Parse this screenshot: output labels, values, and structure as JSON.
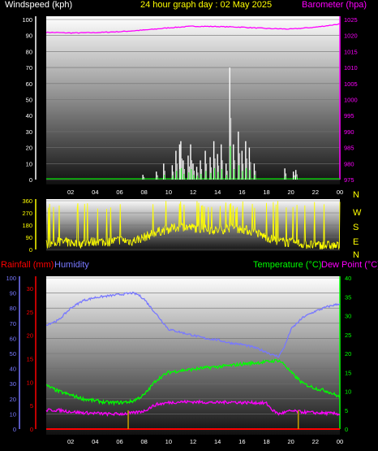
{
  "header": {
    "title": "24 hour graph day : 02 May 2025",
    "left_label": "Windspeed (kph)",
    "right_label": "Barometer (hpa)"
  },
  "colors": {
    "wind_speed": "#d0d0d0",
    "wind_gust": "#ffffff",
    "wind_avg": "#00e000",
    "barometer": "#ff00ff",
    "direction": "#ffff00",
    "temperature": "#00ff00",
    "dew_point": "#ff00ff",
    "humidity": "#7878ff",
    "rainfall": "#ff0000",
    "rain_marks": "#c8a000",
    "title": "#ffff00"
  },
  "chart_data": [
    {
      "type": "line",
      "name": "wind-barometer",
      "x_ticks": [
        "02",
        "04",
        "06",
        "08",
        "10",
        "12",
        "14",
        "16",
        "18",
        "20",
        "22",
        "00"
      ],
      "left_ticks": [
        "0",
        "10",
        "20",
        "30",
        "40",
        "50",
        "60",
        "70",
        "80",
        "90",
        "100"
      ],
      "right_ticks": [
        "975",
        "980",
        "985",
        "990",
        "995",
        "1000",
        "1005",
        "1010",
        "1015",
        "1020",
        "1025"
      ],
      "ylim_left": [
        0,
        100
      ],
      "ylim_right": [
        975,
        1025
      ],
      "series": [
        {
          "key": "barometer",
          "axis": "right",
          "x": [
            0,
            2,
            4,
            6,
            8,
            10,
            12,
            14,
            16,
            18,
            20,
            22,
            24
          ],
          "values": [
            1021.0,
            1020.8,
            1020.9,
            1021.2,
            1021.7,
            1022.4,
            1022.9,
            1022.8,
            1022.6,
            1022.2,
            1022.0,
            1022.6,
            1023.6
          ]
        },
        {
          "key": "wind_spikes",
          "x": [
            7.9,
            9.0,
            9.6,
            10.3,
            10.6,
            10.9,
            11.0,
            11.2,
            11.6,
            11.8,
            12.0,
            12.3,
            12.6,
            13.0,
            13.4,
            13.7,
            14.0,
            14.3,
            14.7,
            15.0,
            15.3,
            15.7,
            16.0,
            16.3,
            16.6,
            17.0,
            19.5,
            20.2,
            20.4
          ],
          "values": [
            3,
            5,
            10,
            9,
            18,
            22,
            24,
            12,
            15,
            22,
            10,
            8,
            12,
            18,
            14,
            24,
            16,
            22,
            10,
            70,
            22,
            30,
            18,
            24,
            20,
            10,
            7,
            5,
            6
          ]
        }
      ]
    },
    {
      "type": "scatter",
      "name": "wind-direction",
      "x_ticks": [
        "02",
        "04",
        "06",
        "08",
        "10",
        "12",
        "14",
        "16",
        "18",
        "20",
        "22",
        "00"
      ],
      "left_ticks": [
        "0",
        "90",
        "180",
        "270",
        "360"
      ],
      "right_labels": [
        "N",
        "W",
        "S",
        "E",
        "N"
      ],
      "ylim": [
        0,
        360
      ],
      "band_center": [
        0,
        1,
        2,
        3,
        4,
        5,
        6,
        7,
        8,
        9,
        10,
        11,
        12,
        13,
        14,
        15,
        16,
        17,
        18,
        19,
        20,
        21,
        22,
        23,
        24
      ],
      "band_values": [
        40,
        55,
        50,
        45,
        60,
        55,
        70,
        60,
        90,
        130,
        150,
        170,
        160,
        150,
        140,
        160,
        150,
        130,
        90,
        60,
        50,
        40,
        30,
        30,
        25
      ]
    },
    {
      "type": "line",
      "name": "temperature-humidity-rain",
      "left_label": "Rainfall (mm)",
      "left2_label": "Humidity",
      "right_label": "Temperature (°C)",
      "right2_label": "Dew Point (°C)",
      "x_ticks": [
        "02",
        "04",
        "06",
        "08",
        "10",
        "12",
        "14",
        "16",
        "18",
        "20",
        "22",
        "00"
      ],
      "humidity_ticks": [
        "0",
        "10",
        "20",
        "30",
        "40",
        "50",
        "60",
        "70",
        "80",
        "90",
        "100"
      ],
      "rain_ticks": [
        "0",
        "5",
        "10",
        "15",
        "20",
        "25",
        "30"
      ],
      "temp_ticks": [
        "0",
        "5",
        "10",
        "15",
        "20",
        "25",
        "30",
        "35",
        "40"
      ],
      "ylim_humidity": [
        0,
        100
      ],
      "ylim_temp": [
        0,
        40
      ],
      "series": [
        {
          "key": "humidity",
          "x": [
            0,
            1,
            2,
            3,
            4,
            5,
            6,
            7,
            7.5,
            8,
            9,
            10,
            11,
            12,
            13,
            14,
            15,
            16,
            17,
            18,
            18.5,
            19,
            19.5,
            20,
            21,
            22,
            23,
            24
          ],
          "values": [
            69,
            72,
            80,
            85,
            87,
            88,
            89,
            90,
            89,
            86,
            76,
            66,
            64,
            62,
            60,
            59,
            57,
            56,
            54,
            51,
            49,
            48,
            55,
            66,
            74,
            78,
            81,
            83
          ]
        },
        {
          "key": "temperature",
          "x": [
            0,
            1,
            2,
            3,
            4,
            5,
            6,
            7,
            8,
            9,
            10,
            11,
            12,
            13,
            14,
            15,
            16,
            17,
            18,
            19,
            19.5,
            20,
            21,
            22,
            23,
            24
          ],
          "values": [
            11.5,
            10,
            9,
            8,
            7.5,
            7,
            7,
            7.3,
            9,
            13,
            15,
            15.5,
            15.8,
            16.2,
            16.5,
            16.8,
            17.2,
            17.5,
            17.8,
            18.2,
            17,
            15,
            12,
            10.8,
            10,
            8.5
          ]
        },
        {
          "key": "dew_point",
          "x": [
            0,
            1,
            2,
            3,
            4,
            5,
            6,
            7,
            8,
            8.5,
            9,
            10,
            11,
            12,
            13,
            14,
            15,
            16,
            17,
            18,
            18.5,
            19,
            20,
            21,
            22,
            23,
            24
          ],
          "values": [
            5,
            5,
            4.6,
            4.3,
            4.2,
            4.0,
            4.0,
            4.2,
            4.8,
            5.7,
            6.5,
            7,
            7.2,
            7.2,
            7.1,
            7.0,
            7.2,
            7.0,
            7.0,
            6.8,
            5,
            4,
            4.8,
            4.5,
            4.3,
            4.2,
            4.0
          ]
        },
        {
          "key": "rainfall",
          "x": [
            0,
            24
          ],
          "values": [
            0,
            0
          ]
        },
        {
          "key": "rain_marks",
          "x": [
            6.7,
            20.6
          ],
          "values": [
            4,
            4
          ]
        }
      ]
    }
  ]
}
